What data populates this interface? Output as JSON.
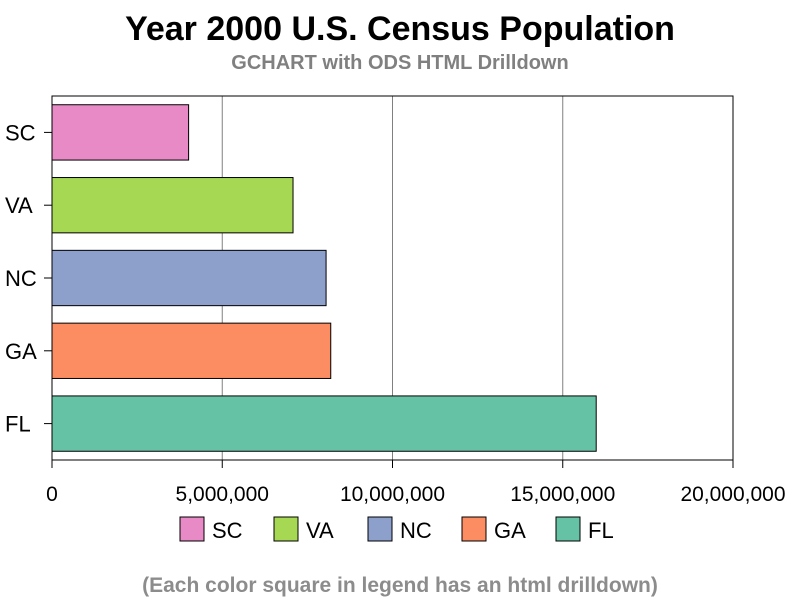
{
  "chart_data": {
    "type": "bar",
    "orientation": "horizontal",
    "title": "Year 2000 U.S. Census Population",
    "subtitle": "GCHART with ODS HTML Drilldown",
    "footnote": "(Each color square in legend has an html drilldown)",
    "xlabel": "",
    "ylabel": "",
    "categories": [
      "SC",
      "VA",
      "NC",
      "GA",
      "FL"
    ],
    "values": [
      4012012,
      7078515,
      8049313,
      8186453,
      15982378
    ],
    "colors": [
      "#e88ac6",
      "#a6d854",
      "#8da0cb",
      "#fc8d62",
      "#66c2a5"
    ],
    "xlim": [
      0,
      20000000
    ],
    "xticks": [
      0,
      5000000,
      10000000,
      15000000,
      20000000
    ],
    "xtick_labels": [
      "0",
      "5,000,000",
      "10,000,000",
      "15,000,000",
      "20,000,000"
    ],
    "grid": true,
    "legend": {
      "position": "bottom",
      "entries": [
        "SC",
        "VA",
        "NC",
        "GA",
        "FL"
      ]
    }
  }
}
